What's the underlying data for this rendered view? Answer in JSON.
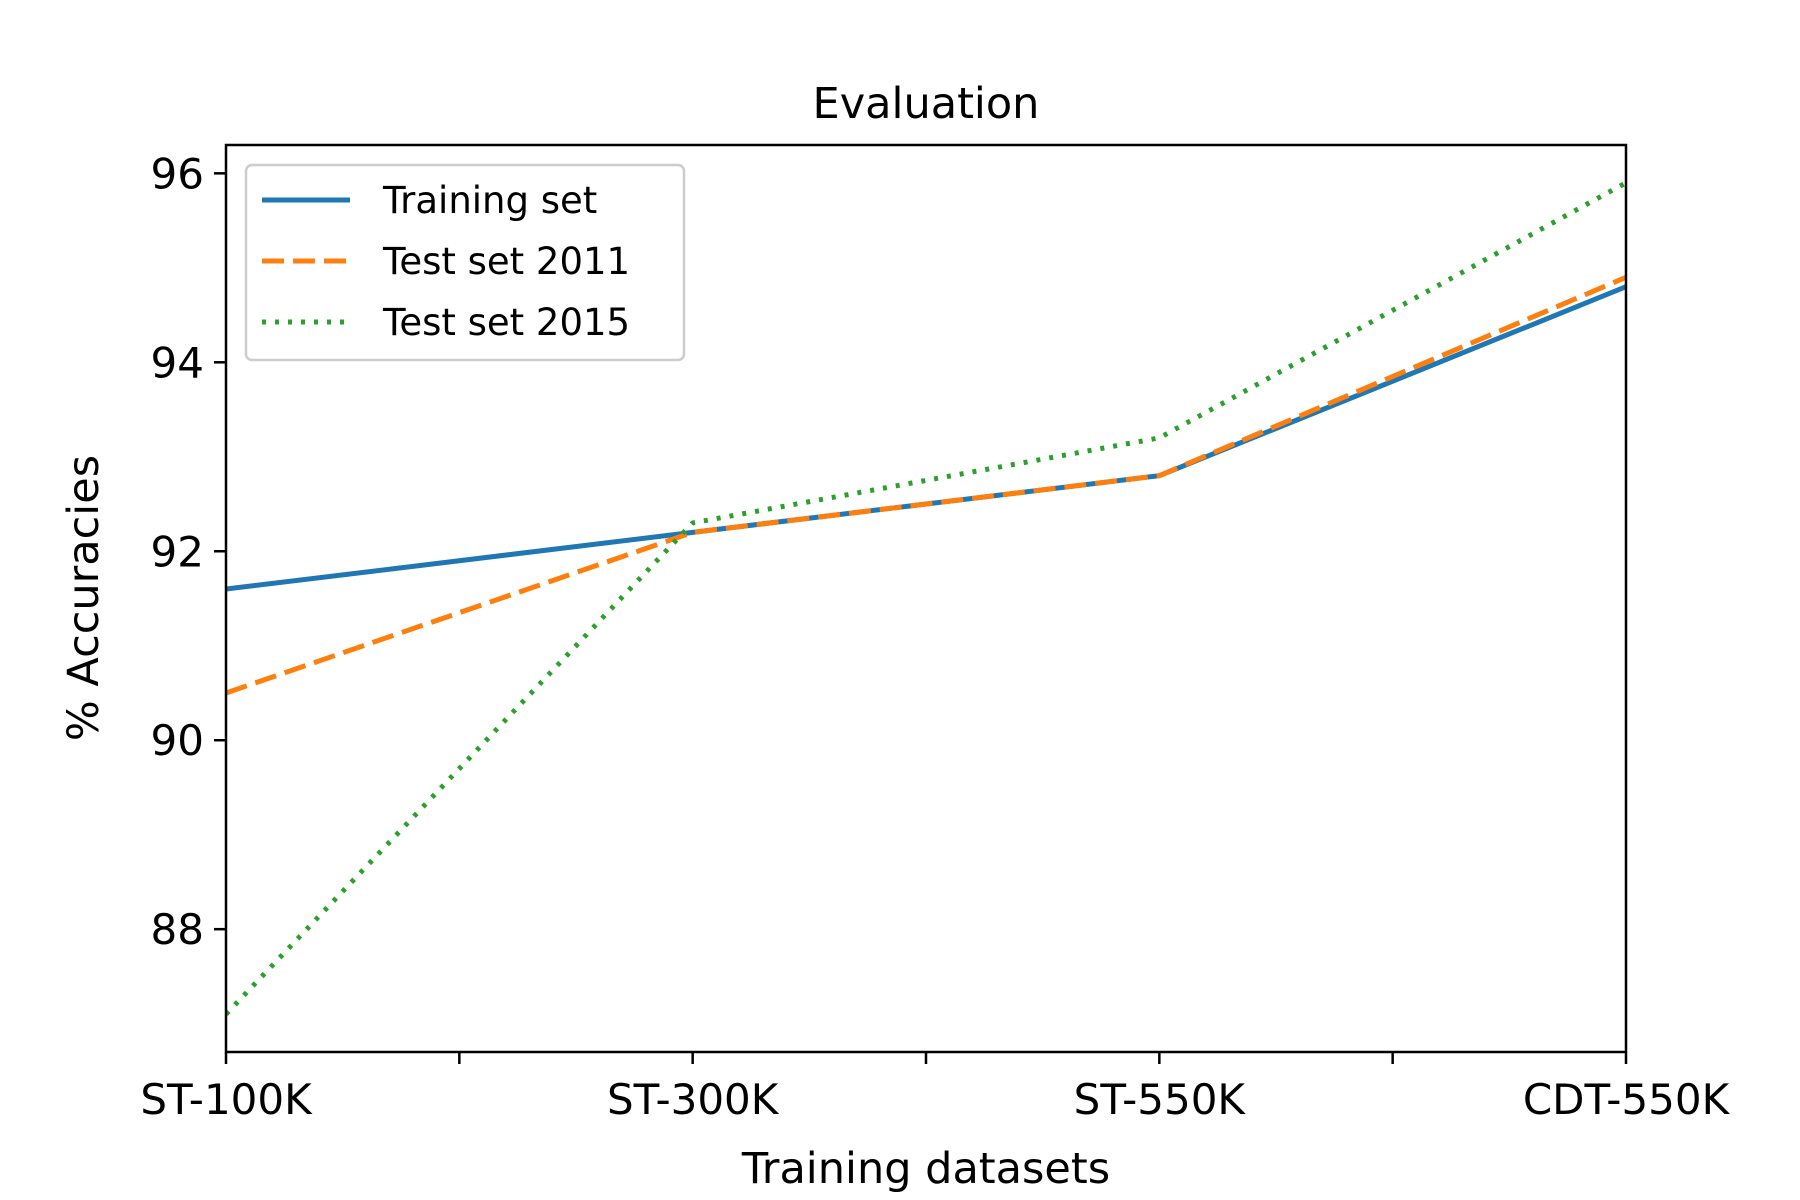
{
  "chart_data": {
    "type": "line",
    "title": "Evaluation",
    "xlabel": "Training datasets",
    "ylabel": "% Accuracies",
    "categories": [
      "ST-100K",
      "ST-300K",
      "ST-550K",
      "CDT-550K"
    ],
    "yticks": [
      "88",
      "90",
      "92",
      "94",
      "96"
    ],
    "ylim": [
      86.7,
      96.3
    ],
    "grid": false,
    "legend_position": "top-left",
    "series": [
      {
        "name": "Training set",
        "values": [
          91.6,
          92.2,
          92.8,
          94.8
        ],
        "color": "#1f77b4",
        "style": "solid"
      },
      {
        "name": "Test set 2011",
        "values": [
          90.5,
          92.2,
          92.8,
          94.9
        ],
        "color": "#ff7f0e",
        "style": "dashed"
      },
      {
        "name": "Test set 2015",
        "values": [
          87.1,
          92.3,
          93.2,
          95.9
        ],
        "color": "#2ca02c",
        "style": "dotted"
      }
    ]
  }
}
